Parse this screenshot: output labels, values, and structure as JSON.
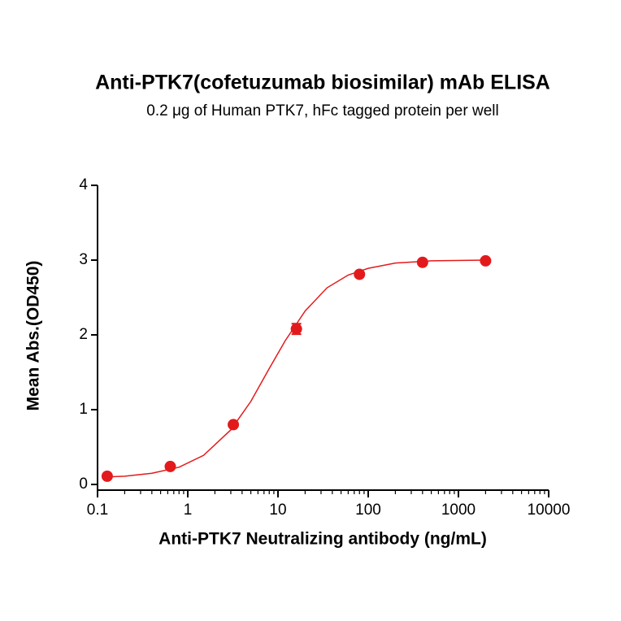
{
  "chart_data": {
    "type": "scatter",
    "title": "Anti-PTK7(cofetuzumab biosimilar) mAb ELISA",
    "subtitle": "0.2 μg of Human PTK7, hFc tagged protein per well",
    "x_label": "Anti-PTK7 Neutralizing antibody (ng/mL)",
    "y_label": "Mean Abs.(OD450)",
    "x_scale": "log",
    "xlim": [
      0.1,
      10000
    ],
    "ylim": [
      0,
      4
    ],
    "xticks": [
      0.1,
      1,
      10,
      100,
      1000,
      10000
    ],
    "xminorticks": [
      0.2,
      0.3,
      0.4,
      0.5,
      0.6,
      0.7,
      0.8,
      0.9,
      2,
      3,
      4,
      5,
      6,
      7,
      8,
      9,
      20,
      30,
      40,
      50,
      60,
      70,
      80,
      90,
      200,
      300,
      400,
      500,
      600,
      700,
      800,
      900,
      2000,
      3000,
      4000,
      5000,
      6000,
      7000,
      8000,
      9000
    ],
    "yticks": [
      0,
      1,
      2,
      3,
      4
    ],
    "color": "#e31a1c",
    "x": [
      0.128,
      0.64,
      3.2,
      16,
      80,
      400,
      2000
    ],
    "values": [
      0.11,
      0.24,
      0.8,
      2.08,
      2.81,
      2.97,
      2.99
    ],
    "errors": [
      null,
      null,
      null,
      0.07,
      null,
      null,
      null
    ],
    "fit": {
      "x": [
        0.128,
        0.2,
        0.4,
        0.8,
        1.5,
        3,
        5,
        8,
        12,
        20,
        35,
        60,
        100,
        200,
        500,
        2000
      ],
      "values": [
        0.1,
        0.11,
        0.15,
        0.23,
        0.39,
        0.73,
        1.11,
        1.55,
        1.92,
        2.32,
        2.63,
        2.8,
        2.89,
        2.96,
        2.99,
        3.0
      ]
    }
  }
}
